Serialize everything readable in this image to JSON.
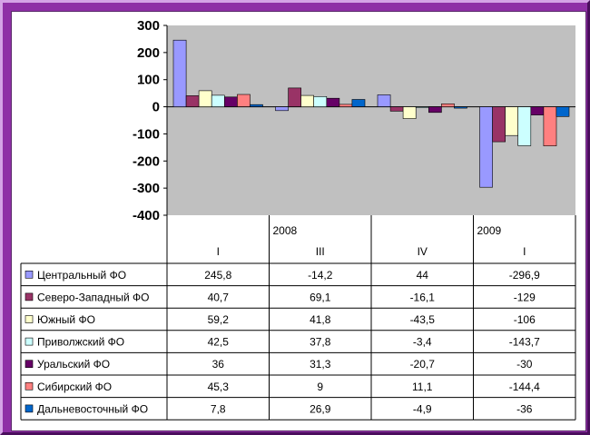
{
  "chart_data": {
    "type": "bar",
    "title": "",
    "ylabel": "",
    "ylim": [
      -400,
      300
    ],
    "yticks": [
      "300",
      "200",
      "100",
      "0",
      "-100",
      "-200",
      "-300",
      "-400"
    ],
    "grid": false,
    "legend": "table",
    "years": [
      {
        "label": "2008",
        "start_col": 1
      },
      {
        "label": "2009",
        "start_col": 3
      }
    ],
    "categories": [
      "I",
      "III",
      "IV",
      "I"
    ],
    "series": [
      {
        "name": "Центральный ФО",
        "color": "#9999ff",
        "values": [
          245.8,
          -14.2,
          44,
          -296.9
        ],
        "labels": [
          "245,8",
          "-14,2",
          "44",
          "-296,9"
        ]
      },
      {
        "name": "Северо-Западный ФО",
        "color": "#993366",
        "values": [
          40.7,
          69.1,
          -16.1,
          -129
        ],
        "labels": [
          "40,7",
          "69,1",
          "-16,1",
          "-129"
        ]
      },
      {
        "name": "Южный ФО",
        "color": "#ffffcc",
        "values": [
          59.2,
          41.8,
          -43.5,
          -106
        ],
        "labels": [
          "59,2",
          "41,8",
          "-43,5",
          "-106"
        ]
      },
      {
        "name": "Приволжский ФО",
        "color": "#ccffff",
        "values": [
          42.5,
          37.8,
          -3.4,
          -143.7
        ],
        "labels": [
          "42,5",
          "37,8",
          "-3,4",
          "-143,7"
        ]
      },
      {
        "name": "Уральский ФО",
        "color": "#660066",
        "values": [
          36,
          31.3,
          -20.7,
          -30
        ],
        "labels": [
          "36",
          "31,3",
          "-20,7",
          "-30"
        ]
      },
      {
        "name": "Сибирский ФО",
        "color": "#ff8080",
        "values": [
          45.3,
          9,
          11.1,
          -144.4
        ],
        "labels": [
          "45,3",
          "9",
          "11,1",
          "-144,4"
        ]
      },
      {
        "name": "Дальневосточный ФО",
        "color": "#0066cc",
        "values": [
          7.8,
          26.9,
          -4.9,
          -36
        ],
        "labels": [
          "7,8",
          "26,9",
          "-4,9",
          "-36"
        ]
      }
    ]
  },
  "colors": {
    "plot_area": "#c0c0c0",
    "frame": "#8f2fa6"
  }
}
